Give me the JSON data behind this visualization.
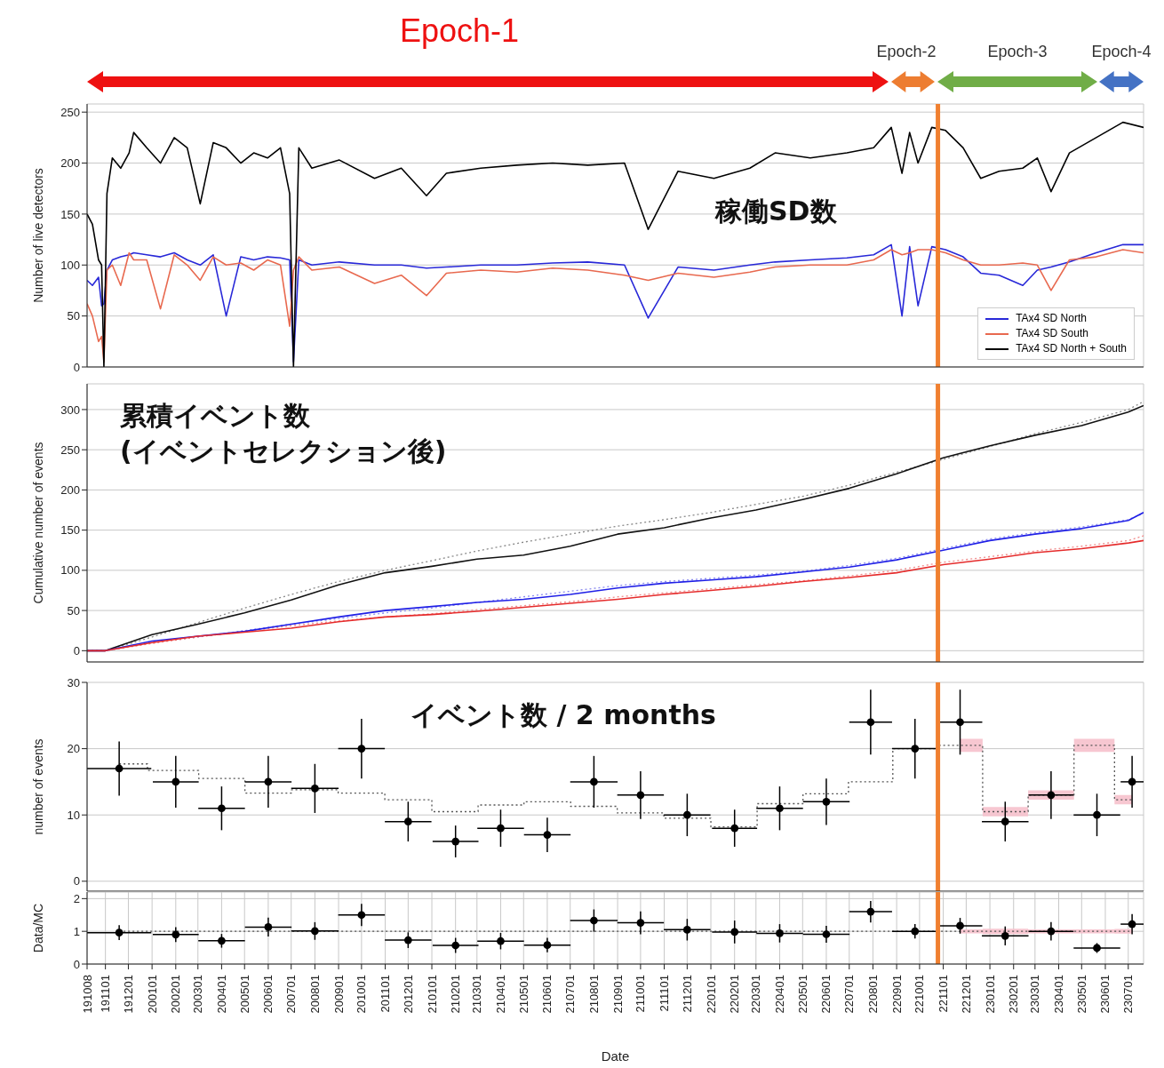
{
  "chart_data": [
    {
      "type": "line",
      "ylabel": "Number of live detectors",
      "x": [
        "2019-10-08",
        "2019-10-15",
        "2019-10-23",
        "2019-10-27",
        "2019-10-30",
        "2019-11-03",
        "2019-11-10",
        "2019-11-21",
        "2019-12-02",
        "2019-12-08",
        "2019-12-25",
        "2020-01-12",
        "2020-01-30",
        "2020-02-16",
        "2020-03-04",
        "2020-03-21",
        "2020-04-07",
        "2020-04-26",
        "2020-05-13",
        "2020-05-31",
        "2020-06-17",
        "2020-06-29",
        "2020-07-04",
        "2020-07-11",
        "2020-07-28",
        "2020-09-02",
        "2020-10-18",
        "2020-11-22",
        "2020-12-25",
        "2021-01-20",
        "2021-03-06",
        "2021-04-22",
        "2021-06-08",
        "2021-07-24",
        "2021-09-10",
        "2021-10-11",
        "2021-11-19",
        "2022-01-05",
        "2022-02-21",
        "2022-03-26",
        "2022-05-11",
        "2022-06-28",
        "2022-08-02",
        "2022-08-25",
        "2022-09-08",
        "2022-09-18",
        "2022-09-29",
        "2022-10-17",
        "2022-11-04",
        "2022-11-27",
        "2022-12-20",
        "2023-01-13",
        "2023-02-13",
        "2023-03-04",
        "2023-03-22",
        "2023-04-15",
        "2023-05-20",
        "2023-06-24",
        "2023-07-21"
      ],
      "series": [
        {
          "name": "TAx4 SD North",
          "color": "#2828d8",
          "values": [
            85,
            80,
            88,
            60,
            62,
            95,
            105,
            108,
            110,
            112,
            110,
            108,
            112,
            105,
            100,
            110,
            50,
            108,
            105,
            108,
            107,
            105,
            5,
            105,
            100,
            103,
            100,
            100,
            97,
            98,
            100,
            100,
            102,
            103,
            100,
            48,
            98,
            95,
            100,
            103,
            105,
            107,
            110,
            120,
            50,
            118,
            60,
            118,
            115,
            108,
            92,
            90,
            80,
            95,
            98,
            103,
            112,
            120,
            120
          ]
        },
        {
          "name": "TAx4 SD South",
          "color": "#e8694f",
          "values": [
            62,
            50,
            25,
            30,
            5,
            95,
            100,
            80,
            112,
            105,
            105,
            57,
            110,
            100,
            85,
            108,
            100,
            102,
            95,
            105,
            100,
            40,
            95,
            108,
            95,
            98,
            82,
            90,
            70,
            92,
            95,
            93,
            97,
            95,
            90,
            85,
            92,
            88,
            93,
            98,
            100,
            100,
            105,
            115,
            110,
            112,
            115,
            115,
            112,
            105,
            100,
            100,
            102,
            100,
            75,
            105,
            108,
            115,
            112
          ]
        },
        {
          "name": "TAx4 SD North + South",
          "color": "#000000",
          "values": [
            150,
            140,
            105,
            100,
            0,
            170,
            205,
            195,
            210,
            230,
            215,
            200,
            225,
            215,
            160,
            220,
            215,
            200,
            210,
            205,
            215,
            170,
            0,
            215,
            195,
            203,
            185,
            195,
            168,
            190,
            195,
            198,
            200,
            198,
            200,
            135,
            192,
            185,
            195,
            210,
            205,
            210,
            215,
            235,
            190,
            230,
            200,
            235,
            232,
            215,
            185,
            192,
            195,
            205,
            172,
            210,
            225,
            240,
            235
          ]
        }
      ],
      "xlim": [
        "2019-10-08",
        "2023-07-21"
      ],
      "ylim": [
        0,
        258
      ],
      "yticks": [
        0,
        50,
        100,
        150,
        200,
        250
      ],
      "xticks": [
        {
          "value": "2019-10-08",
          "label": null
        },
        {
          "value": "2019-11-01",
          "label": null
        },
        {
          "value": "2019-12-01",
          "label": null
        },
        {
          "value": "2020-01-01",
          "label": null
        },
        {
          "value": "2020-02-01",
          "label": null
        },
        {
          "value": "2020-03-01",
          "label": null
        },
        {
          "value": "2020-04-01",
          "label": null
        },
        {
          "value": "2020-05-01",
          "label": null
        },
        {
          "value": "2020-06-01",
          "label": null
        },
        {
          "value": "2020-07-01",
          "label": null
        },
        {
          "value": "2020-08-01",
          "label": null
        },
        {
          "value": "2020-09-01",
          "label": null
        },
        {
          "value": "2020-10-01",
          "label": null
        },
        {
          "value": "2020-11-01",
          "label": null
        },
        {
          "value": "2020-12-01",
          "label": null
        },
        {
          "value": "2021-01-01",
          "label": null
        },
        {
          "value": "2021-02-01",
          "label": null
        },
        {
          "value": "2021-03-01",
          "label": null
        },
        {
          "value": "2021-04-01",
          "label": null
        },
        {
          "value": "2021-05-01",
          "label": null
        },
        {
          "value": "2021-06-01",
          "label": null
        },
        {
          "value": "2021-07-01",
          "label": null
        },
        {
          "value": "2021-08-01",
          "label": null
        },
        {
          "value": "2021-09-01",
          "label": null
        },
        {
          "value": "2021-10-01",
          "label": null
        },
        {
          "value": "2021-11-01",
          "label": null
        },
        {
          "value": "2021-12-01",
          "label": null
        },
        {
          "value": "2022-01-01",
          "label": null
        },
        {
          "value": "2022-02-01",
          "label": null
        },
        {
          "value": "2022-03-01",
          "label": null
        },
        {
          "value": "2022-04-01",
          "label": null
        },
        {
          "value": "2022-05-01",
          "label": null
        },
        {
          "value": "2022-06-01",
          "label": null
        },
        {
          "value": "2022-07-01",
          "label": null
        },
        {
          "value": "2022-08-01",
          "label": null
        },
        {
          "value": "2022-09-01",
          "label": null
        },
        {
          "value": "2022-10-01",
          "label": null
        },
        {
          "value": "2022-11-01",
          "label": null
        },
        {
          "value": "2022-12-01",
          "label": null
        },
        {
          "value": "2023-01-01",
          "label": null
        },
        {
          "value": "2023-02-01",
          "label": null
        },
        {
          "value": "2023-03-01",
          "label": null
        },
        {
          "value": "2023-04-01",
          "label": null
        },
        {
          "value": "2023-05-01",
          "label": null
        },
        {
          "value": "2023-06-01",
          "label": null
        },
        {
          "value": "2023-07-01",
          "label": null
        }
      ],
      "grid": true,
      "legend": "bottom right",
      "tick_labels": "y",
      "annotations": [
        "Epoch-1",
        "Epoch-2",
        "Epoch-3",
        "Epoch-4",
        "稼働SD数"
      ],
      "ref_lines": [
        {
          "axis": "x",
          "value": "2022-10-25",
          "color": "#f08030"
        }
      ]
    },
    {
      "type": "line",
      "ylabel": "Cumulative number of events",
      "x": [
        "2019-10-08",
        "2019-11-01",
        "2020-01-01",
        "2020-03-01",
        "2020-05-01",
        "2020-07-01",
        "2020-09-01",
        "2020-11-01",
        "2021-01-01",
        "2021-03-01",
        "2021-05-01",
        "2021-07-01",
        "2021-09-01",
        "2021-11-01",
        "2022-01-01",
        "2022-03-01",
        "2022-05-01",
        "2022-07-01",
        "2022-09-01",
        "2022-11-01",
        "2023-01-01",
        "2023-03-01",
        "2023-05-01",
        "2023-07-01",
        "2023-07-21"
      ],
      "series": [
        {
          "color": "#888888",
          "line_style": "dotted",
          "values": [
            0,
            0,
            17,
            35,
            53,
            70,
            86,
            100,
            112,
            124,
            135,
            145,
            155,
            163,
            172,
            182,
            192,
            206,
            222,
            238,
            254,
            270,
            284,
            300,
            310
          ]
        },
        {
          "color": "#8a8af0",
          "line_style": "dotted",
          "values": [
            0,
            0,
            10,
            17,
            25,
            33,
            40,
            47,
            53,
            60,
            67,
            74,
            81,
            86,
            90,
            94,
            99,
            106,
            115,
            127,
            139,
            147,
            154,
            163,
            171
          ]
        },
        {
          "color": "#f08a8a",
          "line_style": "dotted",
          "values": [
            0,
            0,
            9,
            17,
            24,
            31,
            37,
            42,
            46,
            51,
            56,
            61,
            67,
            72,
            77,
            82,
            87,
            93,
            100,
            110,
            117,
            124,
            130,
            137,
            143
          ]
        },
        {
          "color": "#111111",
          "values": [
            0,
            0,
            20,
            33,
            47,
            63,
            82,
            97,
            105,
            114,
            119,
            130,
            145,
            153,
            165,
            175,
            188,
            202,
            220,
            240,
            255,
            268,
            280,
            297,
            305
          ]
        },
        {
          "color": "#1f1fe6",
          "values": [
            0,
            0,
            12,
            18,
            24,
            33,
            42,
            50,
            55,
            60,
            64,
            70,
            78,
            84,
            88,
            92,
            98,
            104,
            113,
            125,
            137,
            145,
            152,
            162,
            172
          ]
        },
        {
          "color": "#e52b2b",
          "values": [
            0,
            0,
            10,
            18,
            23,
            28,
            36,
            42,
            45,
            49,
            54,
            59,
            64,
            70,
            75,
            80,
            86,
            91,
            97,
            107,
            114,
            122,
            127,
            134,
            137
          ]
        }
      ],
      "xlim": [
        "2019-10-08",
        "2023-07-21"
      ],
      "ylim": [
        -14,
        332
      ],
      "yticks": [
        0,
        50,
        100,
        150,
        200,
        250,
        300
      ],
      "xticks": [
        {
          "value": "2019-10-08",
          "label": null
        },
        {
          "value": "2019-11-01",
          "label": null
        },
        {
          "value": "2019-12-01",
          "label": null
        },
        {
          "value": "2020-01-01",
          "label": null
        },
        {
          "value": "2020-02-01",
          "label": null
        },
        {
          "value": "2020-03-01",
          "label": null
        },
        {
          "value": "2020-04-01",
          "label": null
        },
        {
          "value": "2020-05-01",
          "label": null
        },
        {
          "value": "2020-06-01",
          "label": null
        },
        {
          "value": "2020-07-01",
          "label": null
        },
        {
          "value": "2020-08-01",
          "label": null
        },
        {
          "value": "2020-09-01",
          "label": null
        },
        {
          "value": "2020-10-01",
          "label": null
        },
        {
          "value": "2020-11-01",
          "label": null
        },
        {
          "value": "2020-12-01",
          "label": null
        },
        {
          "value": "2021-01-01",
          "label": null
        },
        {
          "value": "2021-02-01",
          "label": null
        },
        {
          "value": "2021-03-01",
          "label": null
        },
        {
          "value": "2021-04-01",
          "label": null
        },
        {
          "value": "2021-05-01",
          "label": null
        },
        {
          "value": "2021-06-01",
          "label": null
        },
        {
          "value": "2021-07-01",
          "label": null
        },
        {
          "value": "2021-08-01",
          "label": null
        },
        {
          "value": "2021-09-01",
          "label": null
        },
        {
          "value": "2021-10-01",
          "label": null
        },
        {
          "value": "2021-11-01",
          "label": null
        },
        {
          "value": "2021-12-01",
          "label": null
        },
        {
          "value": "2022-01-01",
          "label": null
        },
        {
          "value": "2022-02-01",
          "label": null
        },
        {
          "value": "2022-03-01",
          "label": null
        },
        {
          "value": "2022-04-01",
          "label": null
        },
        {
          "value": "2022-05-01",
          "label": null
        },
        {
          "value": "2022-06-01",
          "label": null
        },
        {
          "value": "2022-07-01",
          "label": null
        },
        {
          "value": "2022-08-01",
          "label": null
        },
        {
          "value": "2022-09-01",
          "label": null
        },
        {
          "value": "2022-10-01",
          "label": null
        },
        {
          "value": "2022-11-01",
          "label": null
        },
        {
          "value": "2022-12-01",
          "label": null
        },
        {
          "value": "2023-01-01",
          "label": null
        },
        {
          "value": "2023-02-01",
          "label": null
        },
        {
          "value": "2023-03-01",
          "label": null
        },
        {
          "value": "2023-04-01",
          "label": null
        },
        {
          "value": "2023-05-01",
          "label": null
        },
        {
          "value": "2023-06-01",
          "label": null
        },
        {
          "value": "2023-07-01",
          "label": null
        }
      ],
      "grid": true,
      "tick_labels": "y",
      "annotations": [
        "累積イベント数",
        "(イベントセレクション後)"
      ],
      "ref_lines": [
        {
          "axis": "x",
          "value": "2022-10-25",
          "color": "#f08030"
        }
      ]
    },
    {
      "type": "scatter",
      "ylabel": "number of events",
      "x": [
        "2019-11-19",
        "2020-02-01",
        "2020-04-01",
        "2020-06-01",
        "2020-08-01",
        "2020-10-01",
        "2020-12-01",
        "2021-02-01",
        "2021-04-01",
        "2021-06-01",
        "2021-08-01",
        "2021-10-01",
        "2021-12-01",
        "2022-02-01",
        "2022-04-01",
        "2022-06-01",
        "2022-07-29",
        "2022-09-25",
        "2022-11-23",
        "2023-01-21",
        "2023-03-22",
        "2023-05-21",
        "2023-07-06"
      ],
      "series": [
        {
          "type": "step",
          "color": "#555555",
          "line_style": "dotted",
          "values": [
            17.7,
            16.7,
            15.5,
            13.3,
            13.8,
            13.3,
            12.3,
            10.5,
            11.5,
            12,
            11.3,
            10.3,
            9.5,
            8.2,
            11.7,
            13.2,
            15,
            20,
            20.5,
            10.5,
            13,
            20.5,
            12.3
          ],
          "lower": [
            null,
            null,
            null,
            null,
            null,
            null,
            null,
            null,
            null,
            null,
            null,
            null,
            null,
            null,
            null,
            null,
            null,
            null,
            19.5,
            9.8,
            12.3,
            19.5,
            11.6
          ],
          "upper": [
            null,
            null,
            null,
            null,
            null,
            null,
            null,
            null,
            null,
            null,
            null,
            null,
            null,
            null,
            null,
            null,
            null,
            null,
            21.5,
            11.2,
            13.7,
            21.5,
            13
          ]
        },
        {
          "color": "#000000",
          "marker": "circle",
          "values": [
            17,
            15,
            11,
            15,
            14,
            20,
            9,
            6,
            8,
            7,
            15,
            13,
            10,
            8,
            11,
            12,
            24,
            20,
            24,
            9,
            13,
            10,
            15
          ],
          "errors": [
            4.1,
            3.9,
            3.3,
            3.9,
            3.7,
            4.5,
            3,
            2.4,
            2.8,
            2.6,
            3.9,
            3.6,
            3.2,
            2.8,
            3.3,
            3.5,
            4.9,
            4.5,
            4.9,
            3,
            3.6,
            3.2,
            3.9
          ],
          "xerrors": [
            42,
            30,
            30.5,
            30.5,
            31,
            30.5,
            30.5,
            30,
            30.5,
            30.5,
            31,
            30.5,
            30.5,
            29.5,
            30.5,
            30.5,
            28,
            30,
            29,
            30.5,
            29.5,
            30.5,
            15
          ]
        }
      ],
      "xlim": [
        "2019-10-08",
        "2023-07-21"
      ],
      "ylim": [
        -1.5,
        30
      ],
      "yticks": [
        0,
        10,
        20,
        30
      ],
      "xticks": [
        {
          "value": "2019-10-08",
          "label": null
        },
        {
          "value": "2019-11-01",
          "label": null
        },
        {
          "value": "2019-12-01",
          "label": null
        },
        {
          "value": "2020-01-01",
          "label": null
        },
        {
          "value": "2020-02-01",
          "label": null
        },
        {
          "value": "2020-03-01",
          "label": null
        },
        {
          "value": "2020-04-01",
          "label": null
        },
        {
          "value": "2020-05-01",
          "label": null
        },
        {
          "value": "2020-06-01",
          "label": null
        },
        {
          "value": "2020-07-01",
          "label": null
        },
        {
          "value": "2020-08-01",
          "label": null
        },
        {
          "value": "2020-09-01",
          "label": null
        },
        {
          "value": "2020-10-01",
          "label": null
        },
        {
          "value": "2020-11-01",
          "label": null
        },
        {
          "value": "2020-12-01",
          "label": null
        },
        {
          "value": "2021-01-01",
          "label": null
        },
        {
          "value": "2021-02-01",
          "label": null
        },
        {
          "value": "2021-03-01",
          "label": null
        },
        {
          "value": "2021-04-01",
          "label": null
        },
        {
          "value": "2021-05-01",
          "label": null
        },
        {
          "value": "2021-06-01",
          "label": null
        },
        {
          "value": "2021-07-01",
          "label": null
        },
        {
          "value": "2021-08-01",
          "label": null
        },
        {
          "value": "2021-09-01",
          "label": null
        },
        {
          "value": "2021-10-01",
          "label": null
        },
        {
          "value": "2021-11-01",
          "label": null
        },
        {
          "value": "2021-12-01",
          "label": null
        },
        {
          "value": "2022-01-01",
          "label": null
        },
        {
          "value": "2022-02-01",
          "label": null
        },
        {
          "value": "2022-03-01",
          "label": null
        },
        {
          "value": "2022-04-01",
          "label": null
        },
        {
          "value": "2022-05-01",
          "label": null
        },
        {
          "value": "2022-06-01",
          "label": null
        },
        {
          "value": "2022-07-01",
          "label": null
        },
        {
          "value": "2022-08-01",
          "label": null
        },
        {
          "value": "2022-09-01",
          "label": null
        },
        {
          "value": "2022-10-01",
          "label": null
        },
        {
          "value": "2022-11-01",
          "label": null
        },
        {
          "value": "2022-12-01",
          "label": null
        },
        {
          "value": "2023-01-01",
          "label": null
        },
        {
          "value": "2023-02-01",
          "label": null
        },
        {
          "value": "2023-03-01",
          "label": null
        },
        {
          "value": "2023-04-01",
          "label": null
        },
        {
          "value": "2023-05-01",
          "label": null
        },
        {
          "value": "2023-06-01",
          "label": null
        },
        {
          "value": "2023-07-01",
          "label": null
        }
      ],
      "grid": true,
      "tick_labels": "y",
      "annotations": [
        "イベント数 / 2 months"
      ],
      "ref_lines": [
        {
          "axis": "x",
          "value": "2022-10-25",
          "color": "#f08030"
        }
      ]
    },
    {
      "type": "scatter",
      "ylabel": "Data/MC",
      "xlabel": "Date",
      "x": [
        "2019-11-19",
        "2020-02-01",
        "2020-04-01",
        "2020-06-01",
        "2020-08-01",
        "2020-10-01",
        "2020-12-01",
        "2021-02-01",
        "2021-04-01",
        "2021-06-01",
        "2021-08-01",
        "2021-10-01",
        "2021-12-01",
        "2022-02-01",
        "2022-04-01",
        "2022-06-01",
        "2022-07-29",
        "2022-09-25",
        "2022-11-23",
        "2023-01-21",
        "2023-03-22",
        "2023-05-21",
        "2023-07-06"
      ],
      "series": [
        {
          "type": "step",
          "color": "#555555",
          "line_style": "dotted",
          "values": [
            1,
            1,
            1,
            1,
            1,
            1,
            1,
            1,
            1,
            1,
            1,
            1,
            1,
            1,
            1,
            1,
            1,
            1,
            1,
            1,
            1,
            1,
            1
          ],
          "lower": [
            null,
            null,
            null,
            null,
            null,
            null,
            null,
            null,
            null,
            null,
            null,
            null,
            null,
            null,
            null,
            null,
            null,
            null,
            0.94,
            0.92,
            0.94,
            0.94,
            0.93
          ],
          "upper": [
            null,
            null,
            null,
            null,
            null,
            null,
            null,
            null,
            null,
            null,
            null,
            null,
            null,
            null,
            null,
            null,
            null,
            null,
            1.06,
            1.08,
            1.06,
            1.06,
            1.07
          ]
        },
        {
          "color": "#000000",
          "marker": "circle",
          "values": [
            0.96,
            0.9,
            0.71,
            1.13,
            1.01,
            1.5,
            0.73,
            0.57,
            0.7,
            0.58,
            1.33,
            1.26,
            1.05,
            0.98,
            0.94,
            0.91,
            1.6,
            1.0,
            1.17,
            0.86,
            1.0,
            0.49,
            1.22
          ],
          "errors": [
            0.23,
            0.23,
            0.21,
            0.29,
            0.27,
            0.34,
            0.24,
            0.23,
            0.25,
            0.22,
            0.34,
            0.35,
            0.33,
            0.35,
            0.28,
            0.26,
            0.33,
            0.22,
            0.24,
            0.29,
            0.28,
            0.15,
            0.31
          ],
          "xerrors": [
            42,
            30,
            30.5,
            30.5,
            31,
            30.5,
            30.5,
            30,
            30.5,
            30.5,
            31,
            30.5,
            30.5,
            29.5,
            30.5,
            30.5,
            28,
            30,
            29,
            30.5,
            29.5,
            30.5,
            15
          ]
        }
      ],
      "xlim": [
        "2019-10-08",
        "2023-07-21"
      ],
      "ylim": [
        0,
        2.2
      ],
      "yticks": [
        0,
        1,
        2
      ],
      "xticks": [
        {
          "value": "2019-10-08",
          "label": "191008"
        },
        {
          "value": "2019-11-01",
          "label": "191101"
        },
        {
          "value": "2019-12-01",
          "label": "191201"
        },
        {
          "value": "2020-01-01",
          "label": "200101"
        },
        {
          "value": "2020-02-01",
          "label": "200201"
        },
        {
          "value": "2020-03-01",
          "label": "200301"
        },
        {
          "value": "2020-04-01",
          "label": "200401"
        },
        {
          "value": "2020-05-01",
          "label": "200501"
        },
        {
          "value": "2020-06-01",
          "label": "200601"
        },
        {
          "value": "2020-07-01",
          "label": "200701"
        },
        {
          "value": "2020-08-01",
          "label": "200801"
        },
        {
          "value": "2020-09-01",
          "label": "200901"
        },
        {
          "value": "2020-10-01",
          "label": "201001"
        },
        {
          "value": "2020-11-01",
          "label": "201101"
        },
        {
          "value": "2020-12-01",
          "label": "201201"
        },
        {
          "value": "2021-01-01",
          "label": "210101"
        },
        {
          "value": "2021-02-01",
          "label": "210201"
        },
        {
          "value": "2021-03-01",
          "label": "210301"
        },
        {
          "value": "2021-04-01",
          "label": "210401"
        },
        {
          "value": "2021-05-01",
          "label": "210501"
        },
        {
          "value": "2021-06-01",
          "label": "210601"
        },
        {
          "value": "2021-07-01",
          "label": "210701"
        },
        {
          "value": "2021-08-01",
          "label": "210801"
        },
        {
          "value": "2021-09-01",
          "label": "210901"
        },
        {
          "value": "2021-10-01",
          "label": "211001"
        },
        {
          "value": "2021-11-01",
          "label": "211101"
        },
        {
          "value": "2021-12-01",
          "label": "211201"
        },
        {
          "value": "2022-01-01",
          "label": "220101"
        },
        {
          "value": "2022-02-01",
          "label": "220201"
        },
        {
          "value": "2022-03-01",
          "label": "220301"
        },
        {
          "value": "2022-04-01",
          "label": "220401"
        },
        {
          "value": "2022-05-01",
          "label": "220501"
        },
        {
          "value": "2022-06-01",
          "label": "220601"
        },
        {
          "value": "2022-07-01",
          "label": "220701"
        },
        {
          "value": "2022-08-01",
          "label": "220801"
        },
        {
          "value": "2022-09-01",
          "label": "220901"
        },
        {
          "value": "2022-10-01",
          "label": "221001"
        },
        {
          "value": "2022-11-01",
          "label": "221101"
        },
        {
          "value": "2022-12-01",
          "label": "221201"
        },
        {
          "value": "2023-01-01",
          "label": "230101"
        },
        {
          "value": "2023-02-01",
          "label": "230201"
        },
        {
          "value": "2023-03-01",
          "label": "230301"
        },
        {
          "value": "2023-04-01",
          "label": "230401"
        },
        {
          "value": "2023-05-01",
          "label": "230501"
        },
        {
          "value": "2023-06-01",
          "label": "230601"
        },
        {
          "value": "2023-07-01",
          "label": "230701"
        }
      ],
      "grid": true,
      "ref_lines": [
        {
          "axis": "x",
          "value": "2022-10-25",
          "color": "#f08030"
        }
      ]
    }
  ]
}
